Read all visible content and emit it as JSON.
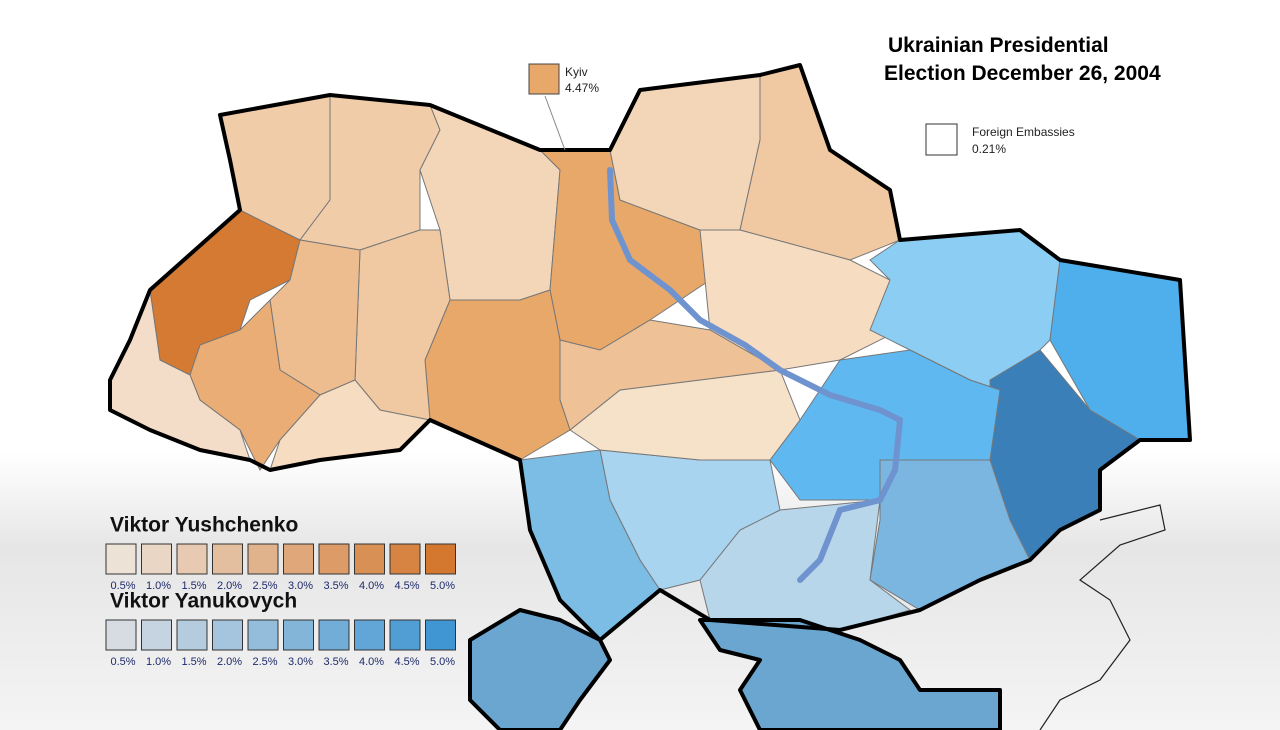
{
  "title": {
    "line1": "Ukrainian Presidential",
    "line2": "Election December 26, 2004"
  },
  "kyiv": {
    "name": "Kyiv",
    "value": "4.47%"
  },
  "embassies": {
    "name": "Foreign Embassies",
    "value": "0.21%"
  },
  "legend": [
    {
      "candidate": "Viktor Yushchenko",
      "labels": [
        "0.5%",
        "1.0%",
        "1.5%",
        "2.0%",
        "2.5%",
        "3.0%",
        "3.5%",
        "4.0%",
        "4.5%",
        "5.0%"
      ]
    },
    {
      "candidate": "Viktor Yanukovych",
      "labels": [
        "0.5%",
        "1.0%",
        "1.5%",
        "2.0%",
        "2.5%",
        "3.0%",
        "3.5%",
        "4.0%",
        "4.5%",
        "5.0%"
      ]
    }
  ]
}
